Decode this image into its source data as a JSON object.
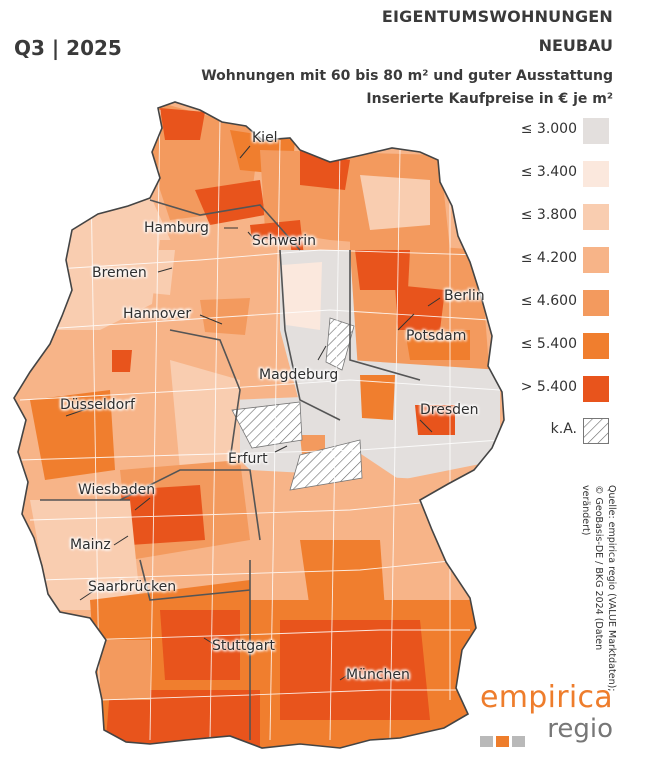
{
  "header": {
    "period": "Q3 | 2025",
    "title_line1": "EIGENTUMSWOHNUNGEN",
    "title_line2": "NEUBAU",
    "subtitle_line1": "Wohnungen mit 60 bis 80 m² und guter Ausstattung",
    "subtitle_line2": "Inserierte Kaufpreise in € je m²"
  },
  "legend": {
    "items": [
      {
        "label": "≤ 3.000",
        "color": "#e3dfdd"
      },
      {
        "label": "≤ 3.400",
        "color": "#fbe8dd"
      },
      {
        "label": "≤ 3.800",
        "color": "#f9cdb0"
      },
      {
        "label": "≤ 4.200",
        "color": "#f7b488"
      },
      {
        "label": "≤ 4.600",
        "color": "#f39a5e"
      },
      {
        "label": "≤ 5.400",
        "color": "#f07e2e"
      },
      {
        "label": "> 5.400",
        "color": "#e8541c"
      }
    ],
    "no_data_label": "k.A."
  },
  "cities": [
    {
      "name": "Kiel"
    },
    {
      "name": "Hamburg"
    },
    {
      "name": "Schwerin"
    },
    {
      "name": "Bremen"
    },
    {
      "name": "Berlin"
    },
    {
      "name": "Hannover"
    },
    {
      "name": "Potsdam"
    },
    {
      "name": "Magdeburg"
    },
    {
      "name": "Düsseldorf"
    },
    {
      "name": "Dresden"
    },
    {
      "name": "Erfurt"
    },
    {
      "name": "Wiesbaden"
    },
    {
      "name": "Mainz"
    },
    {
      "name": "Saarbrücken"
    },
    {
      "name": "Stuttgart"
    },
    {
      "name": "München"
    }
  ],
  "source": {
    "line1": "Quelle: empirica regio (VALUE Marktdaten);",
    "line2": "© GeoBasis-DE / BKG 2024 (Daten verändert)"
  },
  "logo": {
    "word1": "empirica",
    "word2": "regio",
    "colors": [
      "#b9b9b9",
      "#ee7d2c",
      "#b9b9b9"
    ]
  }
}
